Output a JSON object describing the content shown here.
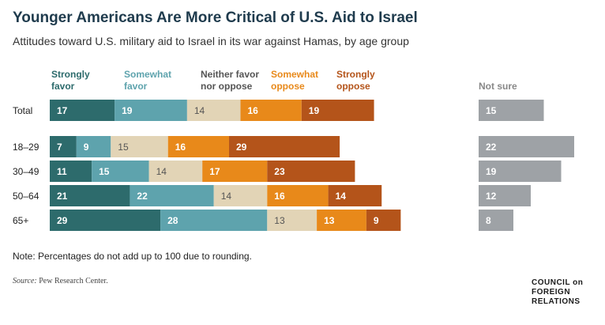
{
  "header": {
    "title": "Younger Americans Are More Critical of U.S. Aid to Israel",
    "subtitle": "Attitudes toward U.S. military aid to Israel in its war against Hamas, by age group"
  },
  "footer": {
    "note": "Note: Percentages do not add up to 100 due to rounding.",
    "source_label": "Source:",
    "source_text": "Pew Research Center.",
    "logo_lines": [
      "COUNCIL on",
      "FOREIGN",
      "RELATIONS"
    ]
  },
  "chart_data": {
    "type": "bar",
    "orientation": "horizontal",
    "stacked": true,
    "categories": [
      "Total",
      "18–29",
      "30–49",
      "50–64",
      "65+"
    ],
    "series": [
      {
        "name": "Strongly favor",
        "color": "#2d6b6c",
        "label_color": "#2d6b6c",
        "values": [
          17,
          7,
          11,
          21,
          29
        ]
      },
      {
        "name": "Somewhat favor",
        "color": "#5ea3ad",
        "label_color": "#5ea3ad",
        "values": [
          19,
          9,
          15,
          22,
          28
        ]
      },
      {
        "name": "Neither favor nor oppose",
        "color": "#e2d4b6",
        "label_color": "#555555",
        "values": [
          14,
          15,
          14,
          14,
          13
        ]
      },
      {
        "name": "Somewhat oppose",
        "color": "#e8891a",
        "label_color": "#e8891a",
        "values": [
          16,
          16,
          17,
          16,
          13
        ]
      },
      {
        "name": "Strongly oppose",
        "color": "#b4541a",
        "label_color": "#b4541a",
        "values": [
          19,
          29,
          23,
          14,
          9
        ]
      }
    ],
    "not_sure": {
      "name": "Not sure",
      "color": "#9ea2a6",
      "label_color": "#888888",
      "values": [
        15,
        22,
        19,
        12,
        8
      ]
    },
    "legend_lines": [
      [
        "Strongly",
        "favor"
      ],
      [
        "Somewhat",
        "favor"
      ],
      [
        "Neither favor",
        "nor oppose"
      ],
      [
        "Somewhat",
        "oppose"
      ],
      [
        "Strongly",
        "oppose"
      ]
    ],
    "not_sure_legend": "Not sure",
    "xlim": [
      0,
      100
    ],
    "grid": false,
    "legend_position": "top"
  }
}
